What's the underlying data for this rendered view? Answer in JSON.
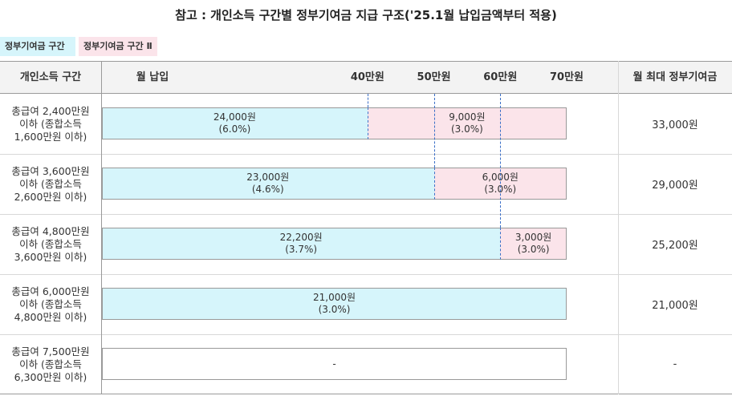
{
  "title": "참고 : 개인소득 구간별 정부기여금 지급 구조('25.1월 납입금액부터 적용)",
  "legend": [
    {
      "label": "정부기여금 구간 Ⅰ",
      "color": "#d6f5fb"
    },
    {
      "label": "정부기여금 구간 Ⅱ",
      "color": "#fbe4ea"
    }
  ],
  "header": {
    "income_col": "개인소득 구간",
    "monthly_col": "월 납입",
    "max_col": "월 최대 정부기여금"
  },
  "chart_data": {
    "type": "bar",
    "orientation": "horizontal",
    "stacked": true,
    "x_axis": {
      "min": 0,
      "max": 700000,
      "ticks": [
        "40만원",
        "50만원",
        "60만원",
        "70만원"
      ],
      "tick_values": [
        400000,
        500000,
        600000,
        700000
      ]
    },
    "categories": [
      "총급여 2,400만원\n이하 (종합소득\n1,600만원 이하)",
      "총급여 3,600만원\n이하 (종합소득\n2,600만원 이하)",
      "총급여 4,800만원\n이하 (종합소득\n3,600만원 이하)",
      "총급여 6,000만원\n이하 (종합소득\n4,800만원 이하)",
      "총급여 7,500만원\n이하 (종합소득\n6,300만원 이하)"
    ],
    "series": [
      {
        "name": "정부기여금 구간 Ⅰ",
        "color": "#d6f5fb",
        "segment_end": [
          400000,
          500000,
          600000,
          700000,
          0
        ],
        "labels": [
          "24,000원\n(6.0%)",
          "23,000원\n(4.6%)",
          "22,200원\n(3.7%)",
          "21,000원\n(3.0%)",
          ""
        ]
      },
      {
        "name": "정부기여금 구간 Ⅱ",
        "color": "#fbe4ea",
        "segment_end": [
          700000,
          700000,
          700000,
          700000,
          0
        ],
        "labels": [
          "9,000원\n(3.0%)",
          "6,000원\n(3.0%)",
          "3,000원\n(3.0%)",
          "",
          ""
        ]
      }
    ],
    "empty_row_label": [
      "",
      "",
      "",
      "",
      "-"
    ],
    "max_contribution": [
      "33,000원",
      "29,000원",
      "25,200원",
      "21,000원",
      "-"
    ]
  }
}
